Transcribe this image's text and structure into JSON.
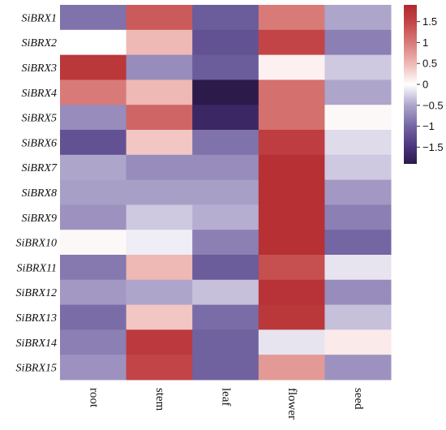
{
  "chart_data": {
    "type": "heatmap",
    "rows": [
      "SiBRX1",
      "SiBRX2",
      "SiBRX3",
      "SiBRX4",
      "SiBRX5",
      "SiBRX6",
      "SiBRX7",
      "SiBRX8",
      "SiBRX9",
      "SiBRX10",
      "SiBRX11",
      "SiBRX12",
      "SiBRX13",
      "SiBRX14",
      "SiBRX15"
    ],
    "columns": [
      "root",
      "stem",
      "leaf",
      "flower",
      "seed"
    ],
    "values": [
      [
        -0.9,
        1.3,
        -1.1,
        1.0,
        -0.5
      ],
      [
        0.0,
        0.5,
        -1.2,
        1.5,
        -0.8
      ],
      [
        1.7,
        -0.7,
        -1.1,
        0.1,
        -0.3
      ],
      [
        1.0,
        0.5,
        -1.9,
        1.1,
        -0.5
      ],
      [
        -0.7,
        1.2,
        -1.7,
        1.1,
        0.05
      ],
      [
        -1.2,
        0.4,
        -0.9,
        1.6,
        -0.2
      ],
      [
        -0.5,
        -0.7,
        -0.7,
        1.8,
        -0.3
      ],
      [
        -0.55,
        -0.55,
        -0.55,
        1.8,
        -0.6
      ],
      [
        -0.65,
        -0.3,
        -0.45,
        1.8,
        -0.8
      ],
      [
        0.05,
        -0.1,
        -0.8,
        1.8,
        -1.0
      ],
      [
        -0.85,
        0.5,
        -1.1,
        1.4,
        -0.15
      ],
      [
        -0.6,
        -0.5,
        -0.35,
        1.75,
        -0.7
      ],
      [
        -0.95,
        0.4,
        -0.95,
        1.7,
        -0.35
      ],
      [
        -0.8,
        1.65,
        -1.05,
        -0.15,
        0.15
      ],
      [
        -0.65,
        1.5,
        -1.05,
        0.75,
        -0.65
      ]
    ],
    "colorbar": {
      "ticks": [
        1.5,
        1,
        0.5,
        0,
        -0.5,
        -1,
        -1.5
      ],
      "tick_labels": [
        "1.5",
        "1",
        "0.5",
        "0",
        "−0.5",
        "−1",
        "−1.5"
      ],
      "range": [
        -1.9,
        1.9
      ],
      "position": "right"
    },
    "color_scale": {
      "high": "#b2292e",
      "mid": "#ffffff",
      "low": "#2c1a4a",
      "stops": [
        {
          "v": -1.9,
          "c": "#2c1a4a"
        },
        {
          "v": -1.5,
          "c": "#49347b"
        },
        {
          "v": -1.0,
          "c": "#7466a3"
        },
        {
          "v": -0.5,
          "c": "#aea5cb"
        },
        {
          "v": 0.0,
          "c": "#ffffff"
        },
        {
          "v": 0.5,
          "c": "#eeb8b4"
        },
        {
          "v": 1.0,
          "c": "#d87b78"
        },
        {
          "v": 1.5,
          "c": "#c24446"
        },
        {
          "v": 1.9,
          "c": "#b2292e"
        }
      ]
    }
  }
}
